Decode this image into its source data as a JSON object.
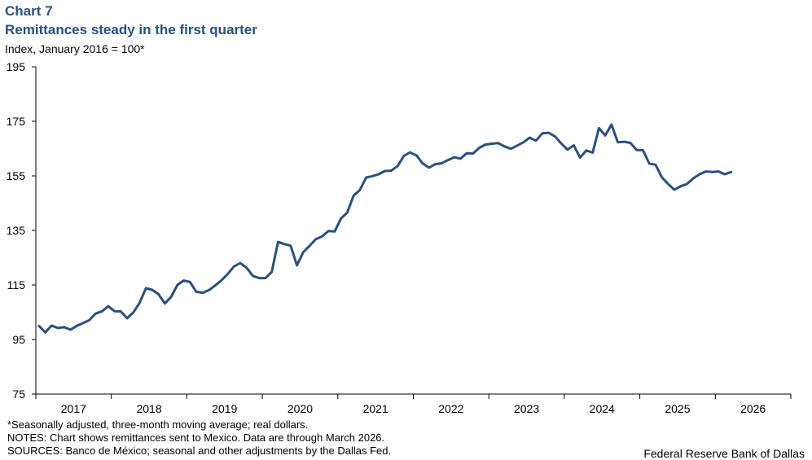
{
  "header": {
    "chart_number": "Chart 7",
    "title": "Remittances steady in the first quarter",
    "subtitle": "Index, January 2016 = 100*"
  },
  "footer": {
    "note1": "*Seasonally adjusted, three-month moving average; real dollars.",
    "note2": "NOTES: Chart shows remittances sent to Mexico. Data are through March 2026.",
    "sources": "SOURCES: Banco de México; seasonal and other adjustments by the Dallas Fed.",
    "credit": "Federal Reserve Bank of Dallas"
  },
  "colors": {
    "line": "#2b4f7e",
    "title": "#2b4f7e"
  },
  "chart_data": {
    "type": "line",
    "title": "Remittances steady in the first quarter",
    "ylabel": "Index, January 2016 = 100*",
    "ylim": [
      75,
      195
    ],
    "yticks": [
      75,
      95,
      115,
      135,
      155,
      175,
      195
    ],
    "xticks": [
      "2017",
      "2018",
      "2019",
      "2020",
      "2021",
      "2022",
      "2023",
      "2024",
      "2025",
      "2026"
    ],
    "x_start": "2016-01",
    "x_end": "2026-03",
    "grid": false,
    "series": [
      {
        "values": [
          100.0,
          97.6,
          100.1,
          99.2,
          99.5,
          98.6,
          100.0,
          101.0,
          102.1,
          104.5,
          105.3,
          107.2,
          105.4,
          105.3,
          102.8,
          104.9,
          108.5,
          113.8,
          113.2,
          111.6,
          108.2,
          110.6,
          115.0,
          116.6,
          116.1,
          112.5,
          112.1,
          113.1,
          114.8,
          116.7,
          119.0,
          121.8,
          123.0,
          121.3,
          118.3,
          117.5,
          117.5,
          119.8,
          130.8,
          130.0,
          129.4,
          122.2,
          127.0,
          129.3,
          131.8,
          132.8,
          134.8,
          134.6,
          139.4,
          141.6,
          147.7,
          149.8,
          154.4,
          154.9,
          155.6,
          156.8,
          156.9,
          158.6,
          162.3,
          163.6,
          162.5,
          159.5,
          158.0,
          159.3,
          159.6,
          160.8,
          161.8,
          161.3,
          163.3,
          163.2,
          165.3,
          166.5,
          166.8,
          167.0,
          165.8,
          164.9,
          166.1,
          167.3,
          169.0,
          167.9,
          170.6,
          170.8,
          169.5,
          166.9,
          164.6,
          166.2,
          161.7,
          164.3,
          163.5,
          172.5,
          169.8,
          173.8,
          167.3,
          167.5,
          167.1,
          164.5,
          164.4,
          159.5,
          159.1,
          154.5,
          152.0,
          149.9,
          151.2,
          152.0,
          154.1,
          155.6,
          156.6,
          156.4,
          156.6,
          155.6,
          156.4
        ]
      }
    ]
  }
}
